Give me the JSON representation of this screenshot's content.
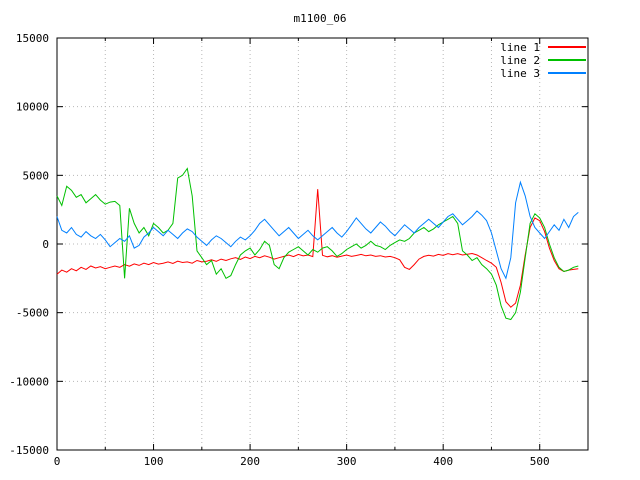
{
  "window": {
    "background": "#ffffff"
  },
  "chart_data": {
    "type": "line",
    "title": "m1100_06",
    "grid": true,
    "legend_position": "top-right",
    "xlim": [
      0,
      550
    ],
    "ylim": [
      -15000,
      15000
    ],
    "x_ticks": {
      "values": [
        0,
        100,
        200,
        300,
        400,
        500
      ],
      "labels": [
        "0",
        "100",
        "200",
        "300",
        "400",
        "500"
      ],
      "minor_step": 50
    },
    "y_ticks": {
      "values": [
        -15000,
        -10000,
        -5000,
        0,
        5000,
        10000,
        15000
      ],
      "labels": [
        "-15000",
        "-10000",
        "-5000",
        "0",
        "5000",
        "10000",
        "15000"
      ]
    },
    "colors": {
      "grid": "#b8b8b8",
      "border": "#000000",
      "text": "#000000"
    },
    "x": [
      0,
      5,
      10,
      15,
      20,
      25,
      30,
      35,
      40,
      45,
      50,
      55,
      60,
      65,
      70,
      75,
      80,
      85,
      90,
      95,
      100,
      105,
      110,
      115,
      120,
      125,
      130,
      135,
      140,
      145,
      150,
      155,
      160,
      165,
      170,
      175,
      180,
      185,
      190,
      195,
      200,
      205,
      210,
      215,
      220,
      225,
      230,
      235,
      240,
      245,
      250,
      255,
      260,
      265,
      270,
      275,
      280,
      285,
      290,
      295,
      300,
      305,
      310,
      315,
      320,
      325,
      330,
      335,
      340,
      345,
      350,
      355,
      360,
      365,
      370,
      375,
      380,
      385,
      390,
      395,
      400,
      405,
      410,
      415,
      420,
      425,
      430,
      435,
      440,
      445,
      450,
      455,
      460,
      465,
      470,
      475,
      480,
      485,
      490,
      495,
      500,
      505,
      510,
      515,
      520,
      525,
      530,
      535,
      540
    ],
    "series": [
      {
        "name": "line 1",
        "color": "#ff0000",
        "values": [
          -2200,
          -1900,
          -2050,
          -1800,
          -1950,
          -1700,
          -1850,
          -1600,
          -1750,
          -1650,
          -1800,
          -1700,
          -1600,
          -1700,
          -1500,
          -1620,
          -1450,
          -1560,
          -1400,
          -1500,
          -1350,
          -1460,
          -1400,
          -1300,
          -1420,
          -1250,
          -1350,
          -1300,
          -1400,
          -1200,
          -1300,
          -1250,
          -1150,
          -1260,
          -1100,
          -1200,
          -1080,
          -1000,
          -1120,
          -950,
          -1060,
          -900,
          -1000,
          -860,
          -960,
          -1100,
          -1000,
          -900,
          -800,
          -920,
          -760,
          -870,
          -800,
          -920,
          4000,
          -820,
          -930,
          -850,
          -960,
          -880,
          -800,
          -900,
          -840,
          -760,
          -860,
          -800,
          -900,
          -850,
          -950,
          -900,
          -1000,
          -1150,
          -1700,
          -1850,
          -1500,
          -1100,
          -900,
          -820,
          -880,
          -760,
          -830,
          -700,
          -780,
          -700,
          -800,
          -740,
          -690,
          -800,
          -1000,
          -1200,
          -1400,
          -1700,
          -2800,
          -4200,
          -4600,
          -4300,
          -3000,
          -800,
          1200,
          1900,
          1700,
          900,
          -300,
          -1200,
          -1800,
          -2000,
          -1900,
          -1850,
          -1800
        ]
      },
      {
        "name": "line 2",
        "color": "#00c000",
        "values": [
          3500,
          2800,
          4200,
          3900,
          3400,
          3600,
          3000,
          3300,
          3600,
          3200,
          2900,
          3050,
          3100,
          2800,
          -2500,
          2600,
          1500,
          800,
          1200,
          600,
          1500,
          1200,
          800,
          1000,
          1500,
          4800,
          5000,
          5500,
          3500,
          -500,
          -1000,
          -1500,
          -1200,
          -2200,
          -1800,
          -2500,
          -2300,
          -1500,
          -800,
          -500,
          -300,
          -800,
          -400,
          200,
          -100,
          -1500,
          -1800,
          -1000,
          -600,
          -400,
          -200,
          -500,
          -800,
          -400,
          -600,
          -300,
          -200,
          -500,
          -900,
          -700,
          -400,
          -200,
          0,
          -300,
          -100,
          200,
          -100,
          -200,
          -400,
          -100,
          100,
          300,
          200,
          400,
          800,
          1000,
          1200,
          900,
          1100,
          1400,
          1600,
          1800,
          2000,
          1500,
          -500,
          -800,
          -1200,
          -1000,
          -1500,
          -1800,
          -2200,
          -3000,
          -4500,
          -5400,
          -5500,
          -5000,
          -3500,
          -1000,
          1500,
          2200,
          1900,
          1200,
          0,
          -1000,
          -1700,
          -2000,
          -1900,
          -1700,
          -1600
        ]
      },
      {
        "name": "line 3",
        "color": "#0080ff",
        "values": [
          2000,
          1000,
          800,
          1200,
          700,
          500,
          900,
          600,
          400,
          700,
          300,
          -200,
          100,
          400,
          200,
          600,
          -300,
          -100,
          500,
          800,
          1200,
          900,
          600,
          1000,
          700,
          400,
          800,
          1100,
          900,
          500,
          200,
          -100,
          300,
          600,
          400,
          100,
          -200,
          200,
          500,
          300,
          600,
          1000,
          1500,
          1800,
          1400,
          1000,
          600,
          900,
          1200,
          800,
          400,
          700,
          1000,
          600,
          300,
          600,
          900,
          1200,
          800,
          500,
          900,
          1400,
          1900,
          1500,
          1100,
          800,
          1200,
          1600,
          1300,
          900,
          600,
          1000,
          1400,
          1100,
          800,
          1200,
          1500,
          1800,
          1500,
          1200,
          1600,
          2000,
          2200,
          1800,
          1400,
          1700,
          2000,
          2400,
          2100,
          1700,
          800,
          -500,
          -1800,
          -2500,
          -1000,
          3000,
          4500,
          3500,
          2000,
          1200,
          800,
          400,
          900,
          1400,
          1000,
          1800,
          1200,
          2000,
          2300
        ]
      }
    ]
  }
}
